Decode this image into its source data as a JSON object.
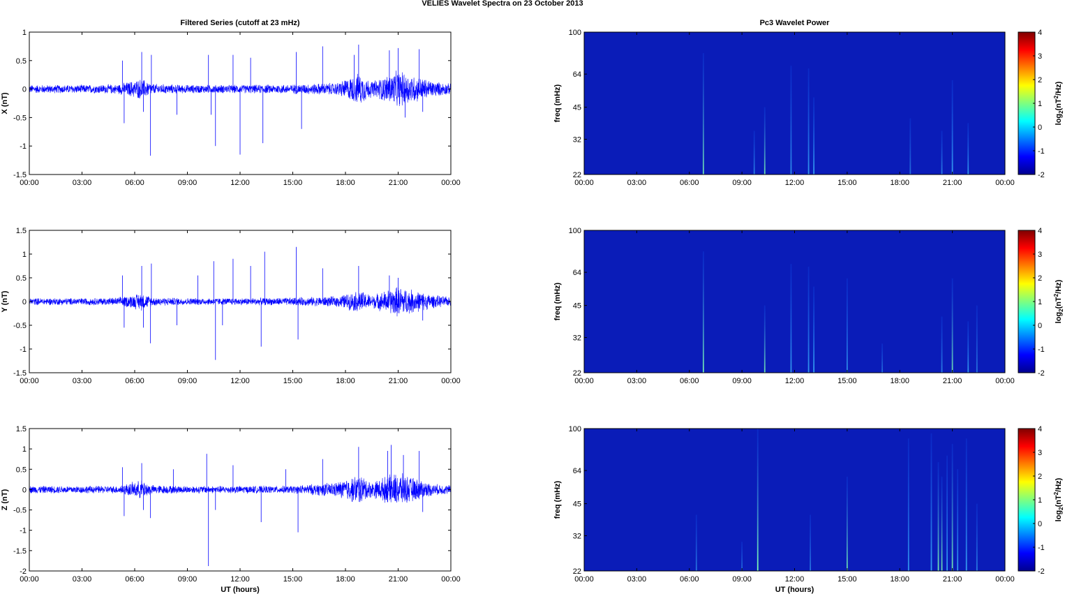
{
  "figure": {
    "title": "VELIES Wavelet Spectra on 23 October   2013"
  },
  "chart_data": [
    {
      "type": "line",
      "title": "Filtered Series (cutoff at 23 mHz)",
      "ylabel": "X (nT)",
      "xlabel": "",
      "xlim": [
        0,
        24
      ],
      "ylim": [
        -1.5,
        1
      ],
      "xticks": [
        "00:00",
        "03:00",
        "06:00",
        "09:00",
        "12:00",
        "15:00",
        "18:00",
        "21:00",
        "00:00"
      ],
      "yticks": [
        "1",
        "0.5",
        "0",
        "-0.5",
        "-1",
        "-1.5"
      ],
      "color": "#0000ff",
      "noise_envelope": [
        [
          0,
          0.08
        ],
        [
          3,
          0.08
        ],
        [
          5,
          0.09
        ],
        [
          6.4,
          0.2
        ],
        [
          7,
          0.1
        ],
        [
          9,
          0.08
        ],
        [
          12,
          0.08
        ],
        [
          15,
          0.09
        ],
        [
          17.5,
          0.12
        ],
        [
          18.8,
          0.3
        ],
        [
          19.5,
          0.15
        ],
        [
          20.3,
          0.25
        ],
        [
          21,
          0.35
        ],
        [
          22,
          0.25
        ],
        [
          23,
          0.15
        ],
        [
          24,
          0.1
        ]
      ],
      "spikes": [
        [
          5.3,
          0.5
        ],
        [
          5.4,
          -0.6
        ],
        [
          6.4,
          0.65
        ],
        [
          6.5,
          -0.4
        ],
        [
          6.9,
          -1.17
        ],
        [
          6.95,
          0.6
        ],
        [
          8.4,
          -0.45
        ],
        [
          10.2,
          0.6
        ],
        [
          10.35,
          -0.45
        ],
        [
          10.6,
          -1.0
        ],
        [
          11.6,
          0.6
        ],
        [
          12.0,
          -1.15
        ],
        [
          12.6,
          0.55
        ],
        [
          13.3,
          -0.95
        ],
        [
          15.2,
          0.65
        ],
        [
          15.5,
          -0.7
        ],
        [
          16.7,
          0.75
        ],
        [
          18.5,
          0.6
        ],
        [
          18.75,
          0.78
        ],
        [
          20.5,
          0.68
        ],
        [
          21.0,
          0.72
        ],
        [
          22.2,
          0.7
        ],
        [
          22.4,
          -0.4
        ],
        [
          21.4,
          -0.5
        ]
      ]
    },
    {
      "type": "line",
      "title": "",
      "ylabel": "Y (nT)",
      "xlabel": "",
      "xlim": [
        0,
        24
      ],
      "ylim": [
        -1.5,
        1.5
      ],
      "xticks": [
        "00:00",
        "03:00",
        "06:00",
        "09:00",
        "12:00",
        "15:00",
        "18:00",
        "21:00",
        "00:00"
      ],
      "yticks": [
        "1.5",
        "1",
        "0.5",
        "0",
        "-0.5",
        "-1",
        "-1.5"
      ],
      "color": "#0000ff",
      "noise_envelope": [
        [
          0,
          0.08
        ],
        [
          3,
          0.08
        ],
        [
          5,
          0.09
        ],
        [
          6.4,
          0.2
        ],
        [
          7,
          0.1
        ],
        [
          9,
          0.08
        ],
        [
          12,
          0.08
        ],
        [
          15,
          0.09
        ],
        [
          17.5,
          0.12
        ],
        [
          18.8,
          0.25
        ],
        [
          19.5,
          0.15
        ],
        [
          20.3,
          0.25
        ],
        [
          21,
          0.35
        ],
        [
          22,
          0.25
        ],
        [
          23,
          0.15
        ],
        [
          24,
          0.1
        ]
      ],
      "spikes": [
        [
          5.3,
          0.55
        ],
        [
          5.4,
          -0.55
        ],
        [
          6.4,
          0.75
        ],
        [
          6.5,
          -0.55
        ],
        [
          6.9,
          -0.88
        ],
        [
          6.95,
          0.8
        ],
        [
          8.4,
          -0.5
        ],
        [
          9.6,
          0.55
        ],
        [
          10.5,
          0.85
        ],
        [
          10.6,
          -1.23
        ],
        [
          11.0,
          -0.5
        ],
        [
          11.6,
          0.9
        ],
        [
          12.6,
          0.75
        ],
        [
          13.2,
          -0.95
        ],
        [
          13.4,
          1.05
        ],
        [
          15.2,
          1.15
        ],
        [
          15.3,
          -0.8
        ],
        [
          16.7,
          0.7
        ],
        [
          18.75,
          0.75
        ],
        [
          20.5,
          0.55
        ],
        [
          21.0,
          0.5
        ],
        [
          22.4,
          -0.4
        ]
      ]
    },
    {
      "type": "line",
      "title": "",
      "ylabel": "Z (nT)",
      "xlabel": "UT (hours)",
      "xlim": [
        0,
        24
      ],
      "ylim": [
        -2,
        1.5
      ],
      "xticks": [
        "00:00",
        "03:00",
        "06:00",
        "09:00",
        "12:00",
        "15:00",
        "18:00",
        "21:00",
        "00:00"
      ],
      "yticks": [
        "1.5",
        "1",
        "0.5",
        "0",
        "-0.5",
        "-1",
        "-1.5",
        "-2"
      ],
      "color": "#0000ff",
      "noise_envelope": [
        [
          0,
          0.1
        ],
        [
          3,
          0.1
        ],
        [
          5,
          0.1
        ],
        [
          6.4,
          0.25
        ],
        [
          7,
          0.12
        ],
        [
          9,
          0.1
        ],
        [
          12,
          0.1
        ],
        [
          15,
          0.1
        ],
        [
          17.5,
          0.2
        ],
        [
          18.8,
          0.4
        ],
        [
          19.5,
          0.2
        ],
        [
          20.3,
          0.35
        ],
        [
          21,
          0.45
        ],
        [
          22,
          0.3
        ],
        [
          23,
          0.15
        ],
        [
          24,
          0.12
        ]
      ],
      "spikes": [
        [
          5.3,
          0.55
        ],
        [
          5.4,
          -0.65
        ],
        [
          6.4,
          0.65
        ],
        [
          6.5,
          -0.5
        ],
        [
          6.9,
          -0.7
        ],
        [
          8.2,
          0.5
        ],
        [
          10.1,
          0.88
        ],
        [
          10.2,
          -1.88
        ],
        [
          10.6,
          -0.5
        ],
        [
          11.6,
          0.6
        ],
        [
          13.2,
          -0.8
        ],
        [
          14.6,
          0.5
        ],
        [
          15.3,
          -1.05
        ],
        [
          16.7,
          0.75
        ],
        [
          18.75,
          1.05
        ],
        [
          20.4,
          0.95
        ],
        [
          20.6,
          1.1
        ],
        [
          21.3,
          0.85
        ],
        [
          22.2,
          0.95
        ],
        [
          22.4,
          -0.55
        ]
      ]
    },
    {
      "type": "heatmap",
      "title": "Pc3 Wavelet Power",
      "ylabel": "freq (mHz)",
      "xlabel": "",
      "xlim": [
        0,
        24
      ],
      "ylim": [
        22,
        100
      ],
      "log_y": true,
      "xticks": [
        "00:00",
        "03:00",
        "06:00",
        "09:00",
        "12:00",
        "15:00",
        "18:00",
        "21:00",
        "00:00"
      ],
      "yticks": [
        "100",
        "64",
        "45",
        "32",
        "22"
      ],
      "colorbar": {
        "label": "log2(nT2/Hz)",
        "range": [
          -2,
          4
        ],
        "ticks": [
          "4",
          "3",
          "2",
          "1",
          "0",
          "-1",
          "-2"
        ],
        "colors": [
          "#00008f",
          "#0000ff",
          "#007fff",
          "#00ffff",
          "#7fff7f",
          "#ffff00",
          "#ff7f00",
          "#ff0000",
          "#7f0000"
        ]
      },
      "background_color": "#0a1cb8",
      "streaks": [
        [
          6.8,
          80,
          0.55
        ],
        [
          9.7,
          35,
          0.3
        ],
        [
          10.3,
          45,
          0.55
        ],
        [
          11.8,
          70,
          0.4
        ],
        [
          12.8,
          68,
          0.45
        ],
        [
          13.1,
          50,
          0.5
        ],
        [
          18.6,
          40,
          0.2
        ],
        [
          20.4,
          35,
          0.3
        ],
        [
          21.0,
          60,
          0.5
        ],
        [
          21.9,
          38,
          0.45
        ]
      ]
    },
    {
      "type": "heatmap",
      "title": "",
      "ylabel": "freq (mHz)",
      "xlabel": "",
      "xlim": [
        0,
        24
      ],
      "ylim": [
        22,
        100
      ],
      "log_y": true,
      "xticks": [
        "00:00",
        "03:00",
        "06:00",
        "09:00",
        "12:00",
        "15:00",
        "18:00",
        "21:00",
        "00:00"
      ],
      "yticks": [
        "100",
        "64",
        "45",
        "32",
        "22"
      ],
      "colorbar": {
        "label": "log2(nT2/Hz)",
        "range": [
          -2,
          4
        ],
        "ticks": [
          "4",
          "3",
          "2",
          "1",
          "0",
          "-1",
          "-2"
        ],
        "colors": [
          "#00008f",
          "#0000ff",
          "#007fff",
          "#00ffff",
          "#7fff7f",
          "#ffff00",
          "#ff7f00",
          "#ff0000",
          "#7f0000"
        ]
      },
      "background_color": "#0a1cb8",
      "streaks": [
        [
          6.8,
          80,
          0.6
        ],
        [
          10.3,
          45,
          0.55
        ],
        [
          11.8,
          70,
          0.45
        ],
        [
          12.8,
          68,
          0.45
        ],
        [
          13.1,
          55,
          0.5
        ],
        [
          15.0,
          60,
          0.4
        ],
        [
          17.0,
          30,
          0.2
        ],
        [
          20.4,
          40,
          0.3
        ],
        [
          21.0,
          60,
          0.55
        ],
        [
          21.9,
          38,
          0.45
        ],
        [
          22.4,
          45,
          0.25
        ]
      ]
    },
    {
      "type": "heatmap",
      "title": "",
      "ylabel": "freq (mHz)",
      "xlabel": "UT (hours)",
      "xlim": [
        0,
        24
      ],
      "ylim": [
        22,
        100
      ],
      "log_y": true,
      "xticks": [
        "00:00",
        "03:00",
        "06:00",
        "09:00",
        "12:00",
        "15:00",
        "18:00",
        "21:00",
        "00:00"
      ],
      "yticks": [
        "100",
        "64",
        "45",
        "32",
        "22"
      ],
      "colorbar": {
        "label": "log2(nT2/Hz)",
        "range": [
          -2,
          4
        ],
        "ticks": [
          "4",
          "3",
          "2",
          "1",
          "0",
          "-1",
          "-2"
        ],
        "colors": [
          "#00008f",
          "#0000ff",
          "#007fff",
          "#00ffff",
          "#7fff7f",
          "#ffff00",
          "#ff7f00",
          "#ff0000",
          "#7f0000"
        ]
      },
      "background_color": "#0a1cb8",
      "streaks": [
        [
          6.4,
          40,
          0.25
        ],
        [
          9.0,
          30,
          0.2
        ],
        [
          9.9,
          100,
          0.75
        ],
        [
          12.9,
          40,
          0.25
        ],
        [
          15.0,
          60,
          0.55
        ],
        [
          18.5,
          90,
          0.45
        ],
        [
          19.8,
          95,
          0.5
        ],
        [
          20.2,
          70,
          0.6
        ],
        [
          20.4,
          60,
          0.55
        ],
        [
          20.7,
          75,
          0.5
        ],
        [
          21.0,
          85,
          0.6
        ],
        [
          21.3,
          65,
          0.45
        ],
        [
          21.8,
          90,
          0.5
        ],
        [
          22.4,
          45,
          0.3
        ]
      ]
    }
  ]
}
